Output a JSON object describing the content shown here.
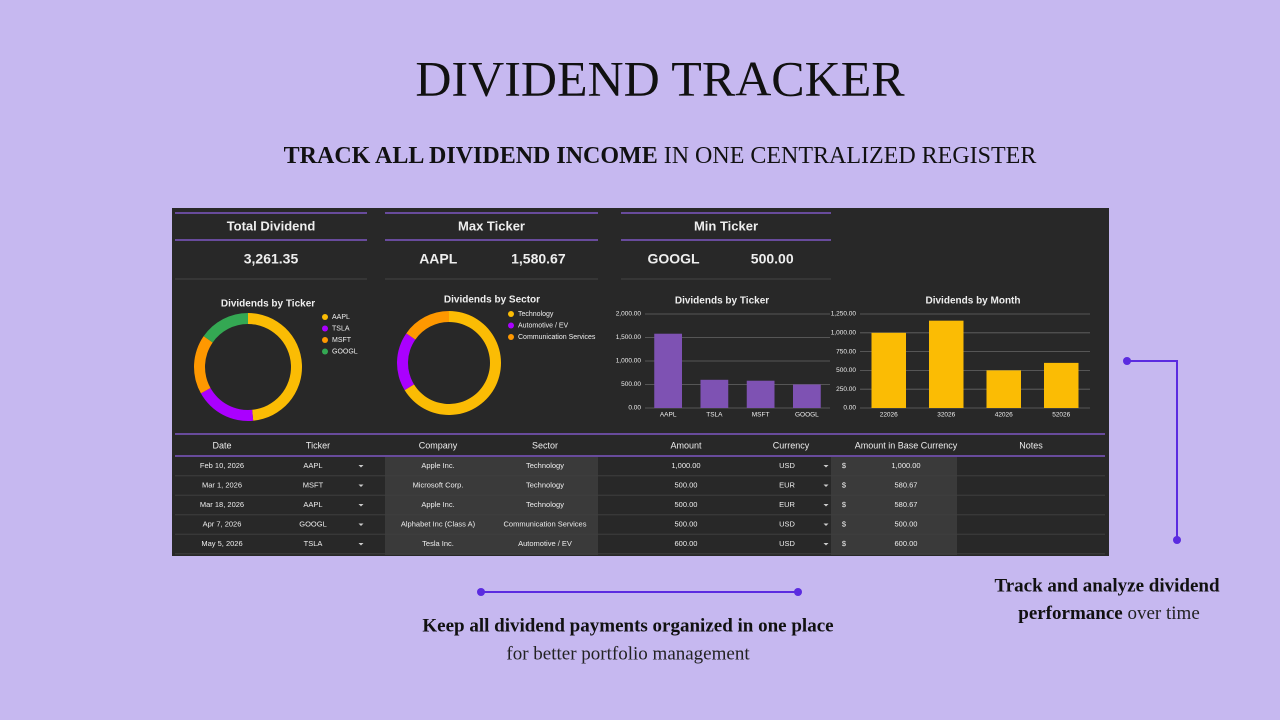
{
  "header": {
    "title": "DIVIDEND TRACKER",
    "subtitle_bold": "TRACK ALL DIVIDEND INCOME",
    "subtitle_rest": "IN ONE CENTRALIZED REGISTER"
  },
  "kpis": [
    {
      "title": "Total Dividend",
      "value": "3,261.35"
    },
    {
      "title": "Max Ticker",
      "ticker": "AAPL",
      "value": "1,580.67"
    },
    {
      "title": "Min Ticker",
      "ticker": "GOOGL",
      "value": "500.00"
    }
  ],
  "chart_data": [
    {
      "type": "donut",
      "title": "Dividends by Ticker",
      "categories": [
        "AAPL",
        "TSLA",
        "MSFT",
        "GOOGL"
      ],
      "values": [
        1580.67,
        600,
        580.67,
        500
      ],
      "colors": [
        "#fbbc04",
        "#aa00ff",
        "#ff9800",
        "#34a853"
      ]
    },
    {
      "type": "donut",
      "title": "Dividends by Sector",
      "categories": [
        "Technology",
        "Automotive / EV",
        "Communication Services"
      ],
      "values": [
        2161.34,
        600,
        500
      ],
      "colors": [
        "#fbbc04",
        "#aa00ff",
        "#ff9800"
      ]
    },
    {
      "type": "bar",
      "title": "Dividends by Ticker",
      "categories": [
        "AAPL",
        "TSLA",
        "MSFT",
        "GOOGL"
      ],
      "values": [
        1580.67,
        600,
        580.67,
        500
      ],
      "color": "#7e52b3",
      "ylim": [
        0,
        2000
      ],
      "yticks": [
        {
          "value": 0,
          "label": "0.00"
        },
        {
          "value": 500,
          "label": "500.00"
        },
        {
          "value": 1000,
          "label": "1,000.00"
        },
        {
          "value": 1500,
          "label": "1,500.00"
        },
        {
          "value": 2000,
          "label": "2,000.00"
        }
      ],
      "grid": true
    },
    {
      "type": "bar",
      "title": "Dividends by Month",
      "categories": [
        "22026",
        "32026",
        "42026",
        "52026"
      ],
      "values": [
        1000,
        1161.34,
        500,
        600
      ],
      "color": "#fbbc04",
      "ylim": [
        0,
        1250
      ],
      "yticks": [
        {
          "value": 0,
          "label": "0.00"
        },
        {
          "value": 250,
          "label": "250.00"
        },
        {
          "value": 500,
          "label": "500.00"
        },
        {
          "value": 750,
          "label": "750.00"
        },
        {
          "value": 1000,
          "label": "1,000.00"
        },
        {
          "value": 1250,
          "label": "1,250.00"
        }
      ],
      "grid": true
    }
  ],
  "table": {
    "columns": [
      "Date",
      "Ticker",
      "Company",
      "Sector",
      "Amount",
      "Currency",
      "Amount in Base Currency",
      "Notes"
    ],
    "rows": [
      [
        "Feb 10, 2026",
        "AAPL",
        "Apple Inc.",
        "Technology",
        "1,000.00",
        "USD",
        "$",
        "1,000.00"
      ],
      [
        "Mar 1, 2026",
        "MSFT",
        "Microsoft Corp.",
        "Technology",
        "500.00",
        "EUR",
        "$",
        "580.67"
      ],
      [
        "Mar 18, 2026",
        "AAPL",
        "Apple Inc.",
        "Technology",
        "500.00",
        "EUR",
        "$",
        "580.67"
      ],
      [
        "Apr 7, 2026",
        "GOOGL",
        "Alphabet Inc (Class A)",
        "Communication Services",
        "500.00",
        "USD",
        "$",
        "500.00"
      ],
      [
        "May 5, 2026",
        "TSLA",
        "Tesla Inc.",
        "Automotive / EV",
        "600.00",
        "USD",
        "$",
        "600.00"
      ]
    ]
  },
  "annotations": [
    {
      "bold": "Keep all dividend payments organized in one place",
      "normal": "for better portfolio management"
    },
    {
      "bold_line1": "Track and analyze dividend",
      "bold_line2": "performance",
      "normal": "over time"
    }
  ]
}
